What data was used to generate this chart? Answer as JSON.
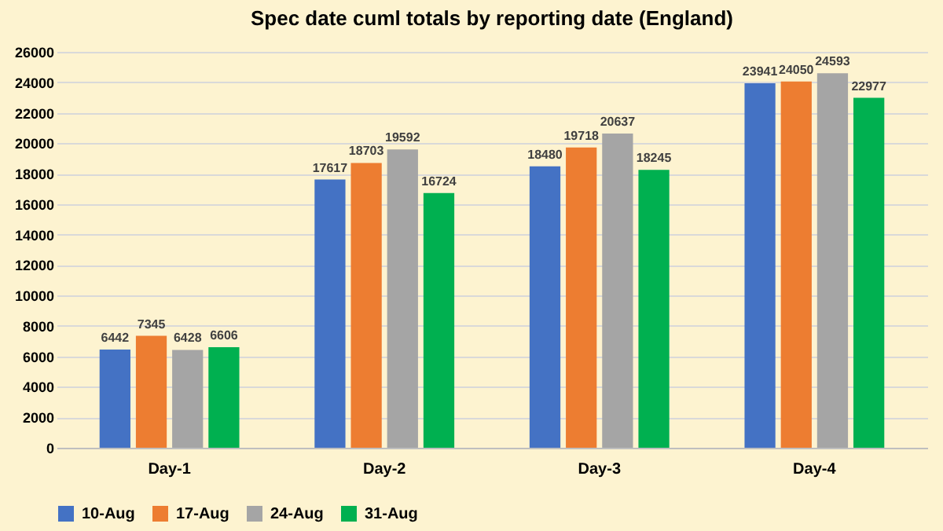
{
  "chart_data": {
    "type": "bar",
    "title": "Spec date cuml totals by reporting date (England)",
    "categories": [
      "Day-1",
      "Day-2",
      "Day-3",
      "Day-4"
    ],
    "series": [
      {
        "name": "10-Aug",
        "color": "#4472c4",
        "values": [
          6442,
          17617,
          18480,
          23941
        ]
      },
      {
        "name": "17-Aug",
        "color": "#ed7d31",
        "values": [
          7345,
          18703,
          19718,
          24050
        ]
      },
      {
        "name": "24-Aug",
        "color": "#a5a5a5",
        "values": [
          6428,
          19592,
          20637,
          24593
        ]
      },
      {
        "name": "31-Aug",
        "color": "#00b050",
        "values": [
          6606,
          16724,
          18245,
          22977
        ]
      }
    ],
    "ylim": [
      0,
      26000
    ],
    "yticks": [
      0,
      2000,
      4000,
      6000,
      8000,
      10000,
      12000,
      14000,
      16000,
      18000,
      20000,
      22000,
      24000,
      26000
    ],
    "grid": "y",
    "legend": "bottom",
    "data_labels": true
  }
}
